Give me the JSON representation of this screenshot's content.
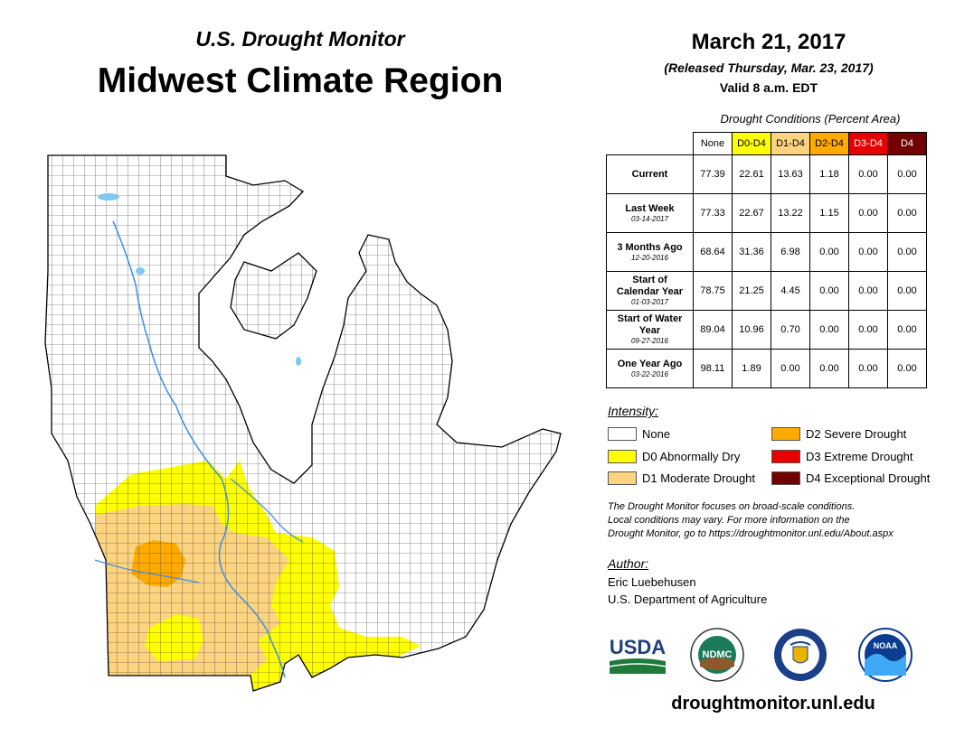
{
  "header": {
    "subtitle": "U.S. Drought Monitor",
    "title": "Midwest Climate Region",
    "date": "March 21, 2017",
    "released": "(Released Thursday, Mar. 23, 2017)",
    "valid": "Valid 8 a.m. EDT"
  },
  "conditions": {
    "caption": "Drought Conditions (Percent Area)",
    "columns": [
      {
        "label": "None",
        "color": "#ffffff",
        "text": "#000000"
      },
      {
        "label": "D0-D4",
        "color": "#ffff00",
        "text": "#000000"
      },
      {
        "label": "D1-D4",
        "color": "#fcd37f",
        "text": "#000000"
      },
      {
        "label": "D2-D4",
        "color": "#ffaa00",
        "text": "#000000"
      },
      {
        "label": "D3-D4",
        "color": "#e60000",
        "text": "#ffffff"
      },
      {
        "label": "D4",
        "color": "#730000",
        "text": "#ffffff"
      }
    ],
    "rows": [
      {
        "label": "Current",
        "sublabel": "",
        "values": [
          "77.39",
          "22.61",
          "13.63",
          "1.18",
          "0.00",
          "0.00"
        ]
      },
      {
        "label": "Last Week",
        "sublabel": "03-14-2017",
        "values": [
          "77.33",
          "22.67",
          "13.22",
          "1.15",
          "0.00",
          "0.00"
        ]
      },
      {
        "label": "3 Months Ago",
        "sublabel": "12-20-2016",
        "values": [
          "68.64",
          "31.36",
          "6.98",
          "0.00",
          "0.00",
          "0.00"
        ]
      },
      {
        "label": "Start of Calendar Year",
        "sublabel": "01-03-2017",
        "values": [
          "78.75",
          "21.25",
          "4.45",
          "0.00",
          "0.00",
          "0.00"
        ]
      },
      {
        "label": "Start of Water Year",
        "sublabel": "09-27-2016",
        "values": [
          "89.04",
          "10.96",
          "0.70",
          "0.00",
          "0.00",
          "0.00"
        ]
      },
      {
        "label": "One Year Ago",
        "sublabel": "03-22-2016",
        "values": [
          "98.11",
          "1.89",
          "0.00",
          "0.00",
          "0.00",
          "0.00"
        ]
      }
    ]
  },
  "legend": {
    "title": "Intensity:",
    "items": [
      {
        "label": "None",
        "color": "#ffffff"
      },
      {
        "label": "D0 Abnormally Dry",
        "color": "#ffff00"
      },
      {
        "label": "D1 Moderate Drought",
        "color": "#fcd37f"
      },
      {
        "label": "D2 Severe Drought",
        "color": "#ffaa00"
      },
      {
        "label": "D3 Extreme Drought",
        "color": "#e60000"
      },
      {
        "label": "D4 Exceptional Drought",
        "color": "#730000"
      }
    ]
  },
  "note": {
    "line1": "The Drought Monitor focuses on broad-scale conditions.",
    "line2": "Local conditions may vary. For more information on the",
    "line3": "Drought Monitor, go to https://droughtmonitor.unl.edu/About.aspx"
  },
  "author": {
    "title": "Author:",
    "name": "Eric Luebehusen",
    "org": "U.S. Department of Agriculture"
  },
  "logos": {
    "usda": "USDA",
    "ndmc": "NDMC",
    "noaa": "NOAA"
  },
  "url": "droughtmonitor.unl.edu"
}
